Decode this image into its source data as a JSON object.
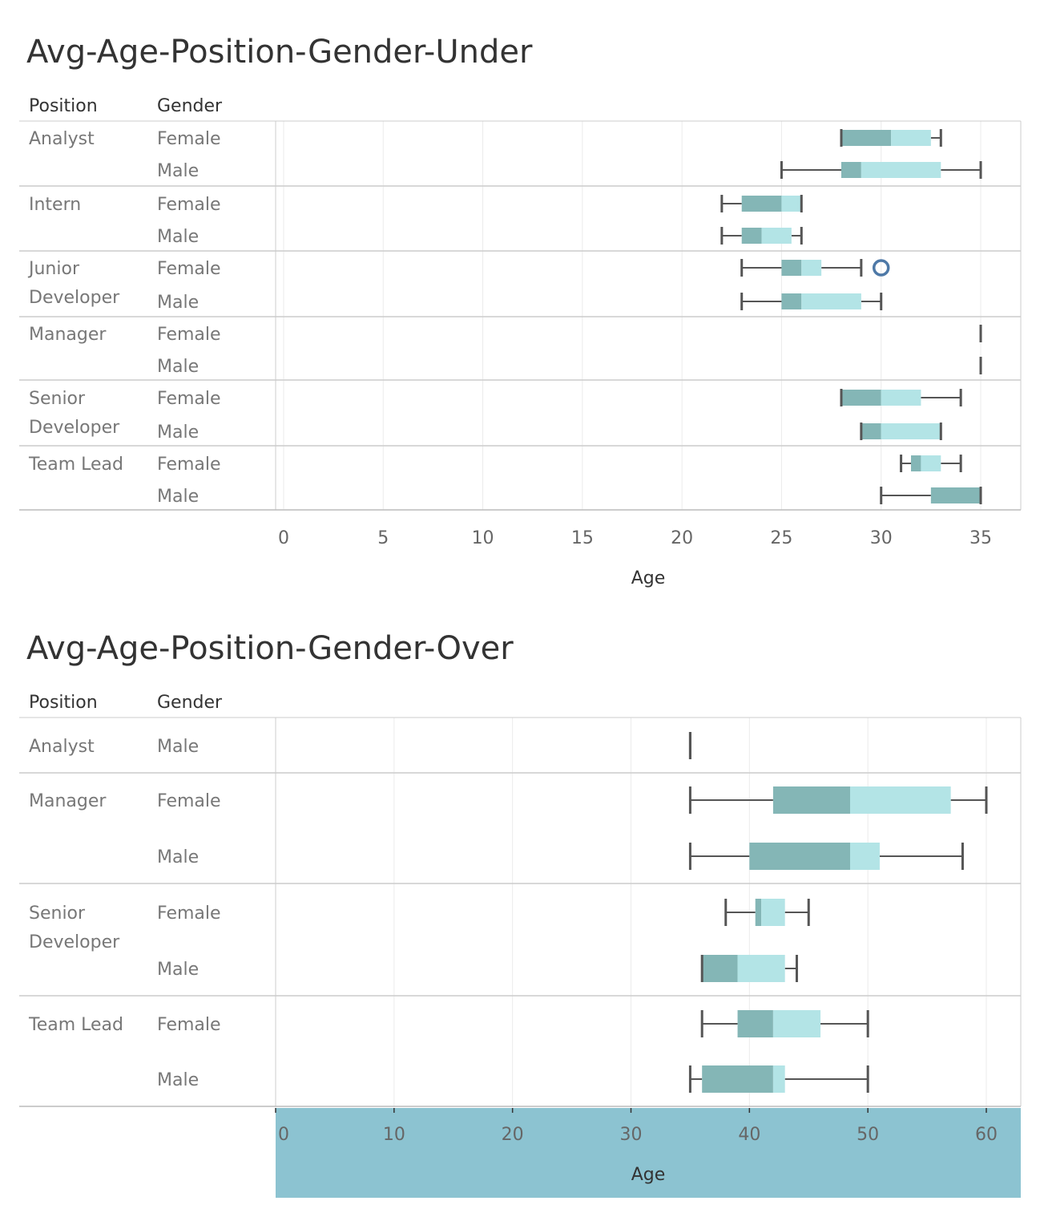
{
  "colors": {
    "q1": "#84b6b6",
    "q3": "#b3e4e6",
    "whisker": "#555555",
    "outlier": "#4e79a7",
    "highlight": "#8cc3d1",
    "grid": "#ebebeb",
    "divider": "#cccccc"
  },
  "header": {
    "position_label": "Position",
    "gender_label": "Gender"
  },
  "chart_data": [
    {
      "type": "boxplot",
      "title": "Avg-Age-Position-Gender-Under",
      "xlabel": "Age",
      "xlim": [
        0,
        35
      ],
      "ticks": [
        0,
        5,
        10,
        15,
        20,
        25,
        30,
        35
      ],
      "groups": [
        {
          "position": [
            "Analyst"
          ],
          "rows": [
            {
              "gender": "Female",
              "min": 28,
              "q1": 28,
              "median": 30.5,
              "q3": 32.5,
              "max": 33
            },
            {
              "gender": "Male",
              "min": 25,
              "q1": 28,
              "median": 29,
              "q3": 33,
              "max": 35
            }
          ]
        },
        {
          "position": [
            "Intern"
          ],
          "rows": [
            {
              "gender": "Female",
              "min": 22,
              "q1": 23,
              "median": 25,
              "q3": 26,
              "max": 26
            },
            {
              "gender": "Male",
              "min": 22,
              "q1": 23,
              "median": 24,
              "q3": 25.5,
              "max": 26
            }
          ]
        },
        {
          "position": [
            "Junior",
            "Developer"
          ],
          "rows": [
            {
              "gender": "Female",
              "min": 23,
              "q1": 25,
              "median": 26,
              "q3": 27,
              "max": 29,
              "outliers": [
                30
              ]
            },
            {
              "gender": "Male",
              "min": 23,
              "q1": 25,
              "median": 26,
              "q3": 29,
              "max": 30
            }
          ]
        },
        {
          "position": [
            "Manager"
          ],
          "rows": [
            {
              "gender": "Female",
              "min": 35,
              "q1": 35,
              "median": 35,
              "q3": 35,
              "max": 35
            },
            {
              "gender": "Male",
              "min": 35,
              "q1": 35,
              "median": 35,
              "q3": 35,
              "max": 35
            }
          ]
        },
        {
          "position": [
            "Senior",
            "Developer"
          ],
          "rows": [
            {
              "gender": "Female",
              "min": 28,
              "q1": 28,
              "median": 30,
              "q3": 32,
              "max": 34
            },
            {
              "gender": "Male",
              "min": 29,
              "q1": 29,
              "median": 30,
              "q3": 33,
              "max": 33
            }
          ]
        },
        {
          "position": [
            "Team Lead"
          ],
          "rows": [
            {
              "gender": "Female",
              "min": 31,
              "q1": 31.5,
              "median": 32,
              "q3": 33,
              "max": 34
            },
            {
              "gender": "Male",
              "min": 30,
              "q1": 32.5,
              "median": 35,
              "q3": 35,
              "max": 35
            }
          ]
        }
      ]
    },
    {
      "type": "boxplot",
      "title": "Avg-Age-Position-Gender-Over",
      "xlabel": "Age",
      "xlim": [
        0,
        60
      ],
      "ticks": [
        0,
        10,
        20,
        30,
        40,
        50,
        60
      ],
      "groups": [
        {
          "position": [
            "Analyst"
          ],
          "rows": [
            {
              "gender": "Male",
              "min": 35,
              "q1": 35,
              "median": 35,
              "q3": 35,
              "max": 35
            }
          ]
        },
        {
          "position": [
            "Manager"
          ],
          "rows": [
            {
              "gender": "Female",
              "min": 35,
              "q1": 42,
              "median": 48.5,
              "q3": 57,
              "max": 60
            },
            {
              "gender": "Male",
              "min": 35,
              "q1": 40,
              "median": 48.5,
              "q3": 51,
              "max": 58
            }
          ]
        },
        {
          "position": [
            "Senior",
            "Developer"
          ],
          "rows": [
            {
              "gender": "Female",
              "min": 38,
              "q1": 40.5,
              "median": 41,
              "q3": 43,
              "max": 45
            },
            {
              "gender": "Male",
              "min": 36,
              "q1": 36,
              "median": 39,
              "q3": 43,
              "max": 44
            }
          ]
        },
        {
          "position": [
            "Team Lead"
          ],
          "rows": [
            {
              "gender": "Female",
              "min": 36,
              "q1": 39,
              "median": 42,
              "q3": 46,
              "max": 50
            },
            {
              "gender": "Male",
              "min": 35,
              "q1": 36,
              "median": 42,
              "q3": 43,
              "max": 50
            }
          ]
        }
      ]
    }
  ]
}
